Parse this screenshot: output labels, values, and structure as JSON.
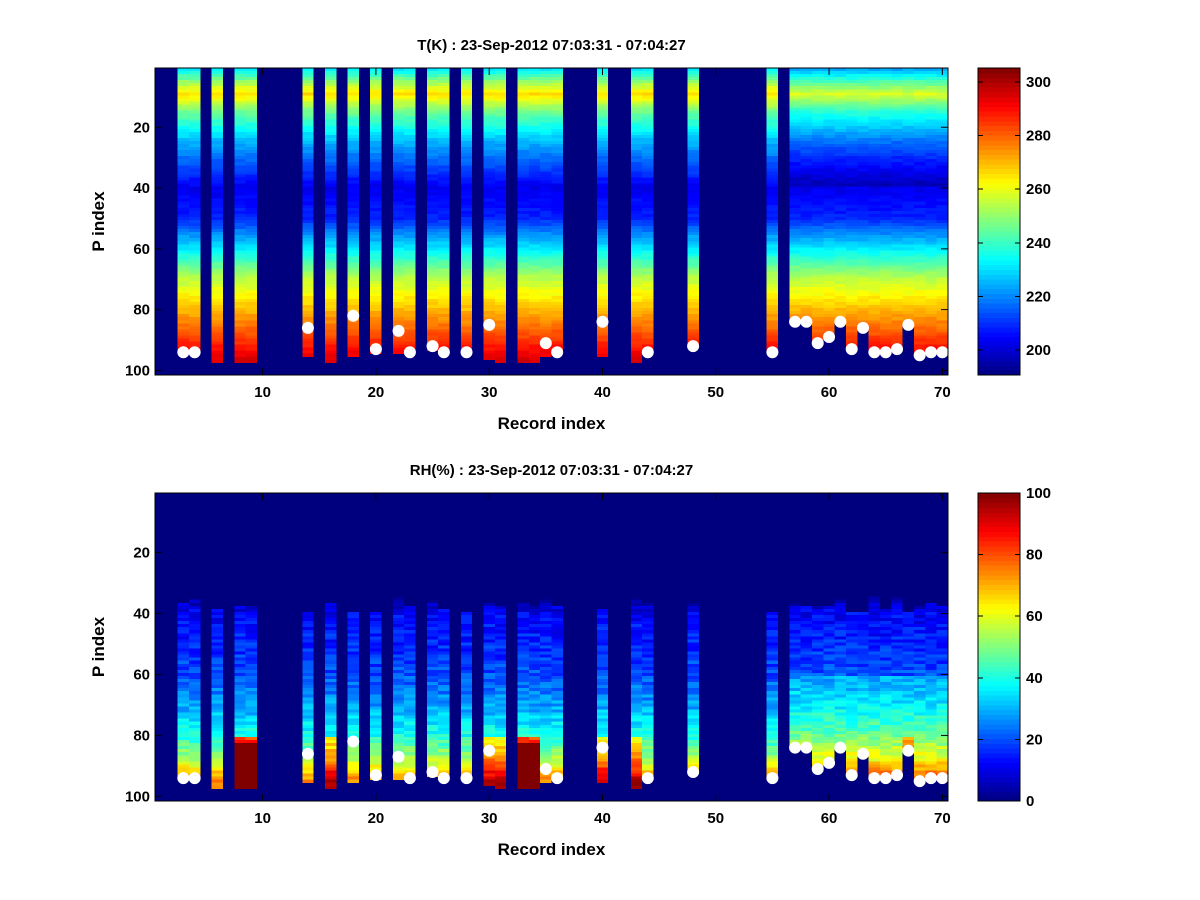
{
  "chart_data": [
    {
      "type": "heatmap",
      "title": "T(K) : 23-Sep-2012 07:03:31 - 07:04:27",
      "xlabel": "Record index",
      "ylabel": "P index",
      "xlim": [
        0.5,
        70.5
      ],
      "ylim": [
        0.5,
        101.5
      ],
      "y_reversed": true,
      "xticks": [
        10,
        20,
        30,
        40,
        50,
        60,
        70
      ],
      "yticks": [
        20,
        40,
        60,
        80,
        100
      ],
      "colormap": "jet",
      "clim": [
        190.7,
        305.2
      ],
      "colorbar_ticks": [
        200,
        220,
        240,
        260,
        280,
        300
      ],
      "profile_p": [
        1,
        5,
        9,
        15,
        25,
        40,
        50,
        60,
        70,
        80,
        90,
        97,
        101
      ],
      "profile_value": [
        232,
        250,
        266,
        246,
        225,
        203,
        209,
        232,
        255,
        270,
        285,
        296,
        300
      ]
    },
    {
      "type": "heatmap",
      "title": "RH(%) : 23-Sep-2012 07:03:31 - 07:04:27",
      "xlabel": "Record index",
      "ylabel": "P index",
      "xlim": [
        0.5,
        70.5
      ],
      "ylim": [
        0.5,
        101.5
      ],
      "y_reversed": true,
      "xticks": [
        10,
        20,
        30,
        40,
        50,
        60,
        70
      ],
      "yticks": [
        20,
        40,
        60,
        80,
        100
      ],
      "colormap": "jet",
      "clim": [
        0,
        100
      ],
      "colorbar_ticks": [
        0,
        20,
        40,
        60,
        80,
        100
      ],
      "profile_p": [
        1,
        34,
        40,
        50,
        60,
        70,
        80,
        88,
        95,
        101
      ],
      "profile_value": [
        0,
        2,
        12,
        16,
        20,
        28,
        40,
        55,
        75,
        85
      ]
    }
  ],
  "records": [
    {
      "r": 3,
      "bottom": 94,
      "surface": 94,
      "wet": 0
    },
    {
      "r": 4,
      "bottom": 94,
      "surface": 94,
      "wet": 0
    },
    {
      "r": 6,
      "bottom": 97,
      "surface": null,
      "wet": 1
    },
    {
      "r": 8,
      "bottom": 97,
      "surface": null,
      "wet": 3
    },
    {
      "r": 9,
      "bottom": 97,
      "surface": null,
      "wet": 3
    },
    {
      "r": 14,
      "bottom": 95,
      "surface": 86,
      "wet": 0
    },
    {
      "r": 16,
      "bottom": 97,
      "surface": null,
      "wet": 2
    },
    {
      "r": 18,
      "bottom": 95,
      "surface": 82,
      "wet": 1
    },
    {
      "r": 20,
      "bottom": 94,
      "surface": 93,
      "wet": 0
    },
    {
      "r": 22,
      "bottom": 94,
      "surface": 87,
      "wet": 0
    },
    {
      "r": 23,
      "bottom": 94,
      "surface": 94,
      "wet": 1
    },
    {
      "r": 25,
      "bottom": 93,
      "surface": 92,
      "wet": 0
    },
    {
      "r": 26,
      "bottom": 94,
      "surface": 94,
      "wet": 1
    },
    {
      "r": 28,
      "bottom": 94,
      "surface": 94,
      "wet": 1
    },
    {
      "r": 30,
      "bottom": 96,
      "surface": 85,
      "wet": 2
    },
    {
      "r": 31,
      "bottom": 97,
      "surface": null,
      "wet": 2
    },
    {
      "r": 33,
      "bottom": 97,
      "surface": null,
      "wet": 3
    },
    {
      "r": 34,
      "bottom": 97,
      "surface": null,
      "wet": 3
    },
    {
      "r": 35,
      "bottom": 95,
      "surface": 91,
      "wet": 1
    },
    {
      "r": 36,
      "bottom": 94,
      "surface": 94,
      "wet": 1
    },
    {
      "r": 40,
      "bottom": 95,
      "surface": 84,
      "wet": 2
    },
    {
      "r": 43,
      "bottom": 97,
      "surface": null,
      "wet": 2
    },
    {
      "r": 44,
      "bottom": 94,
      "surface": 94,
      "wet": 0
    },
    {
      "r": 48,
      "bottom": 92,
      "surface": 92,
      "wet": 0
    },
    {
      "r": 55,
      "bottom": 94,
      "surface": 94,
      "wet": 0
    },
    {
      "r": 57,
      "bottom": 84,
      "surface": 84,
      "wet": 0
    },
    {
      "r": 58,
      "bottom": 84,
      "surface": 84,
      "wet": 0
    },
    {
      "r": 59,
      "bottom": 91,
      "surface": 91,
      "wet": 1
    },
    {
      "r": 60,
      "bottom": 92,
      "surface": 89,
      "wet": 1
    },
    {
      "r": 61,
      "bottom": 84,
      "surface": 84,
      "wet": 0
    },
    {
      "r": 62,
      "bottom": 93,
      "surface": 93,
      "wet": 1
    },
    {
      "r": 63,
      "bottom": 86,
      "surface": 86,
      "wet": 1
    },
    {
      "r": 64,
      "bottom": 94,
      "surface": 94,
      "wet": 0
    },
    {
      "r": 65,
      "bottom": 94,
      "surface": 94,
      "wet": 0
    },
    {
      "r": 66,
      "bottom": 93,
      "surface": 93,
      "wet": 1
    },
    {
      "r": 67,
      "bottom": 95,
      "surface": 85,
      "wet": 2
    },
    {
      "r": 68,
      "bottom": 95,
      "surface": 95,
      "wet": 1
    },
    {
      "r": 69,
      "bottom": 94,
      "surface": 94,
      "wet": 1
    },
    {
      "r": 70,
      "bottom": 94,
      "surface": 94,
      "wet": 1
    }
  ],
  "colors": {
    "background_masked": "#00007f",
    "surface_marker": "#ffffff"
  }
}
